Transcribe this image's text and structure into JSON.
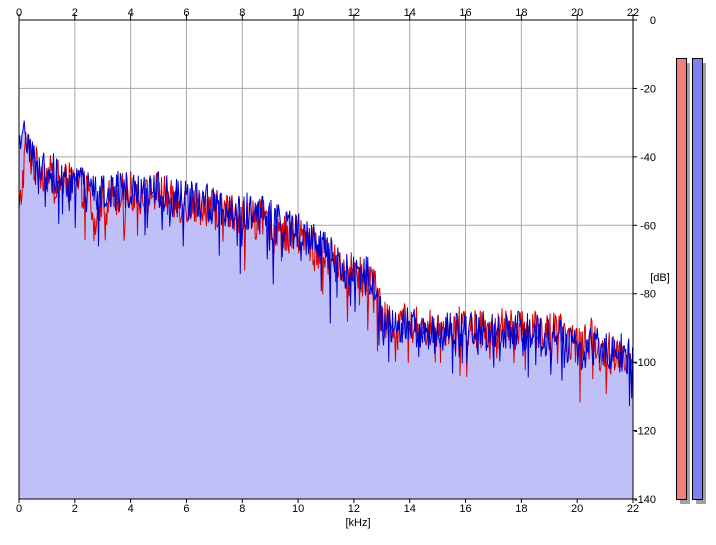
{
  "chart_data": {
    "type": "area",
    "title": "",
    "xlabel": "[kHz]",
    "ylabel": "[dB]",
    "xlim": [
      0,
      22
    ],
    "ylim": [
      -140,
      0
    ],
    "x_ticks": [
      "0",
      "2",
      "4",
      "6",
      "8",
      "10",
      "12",
      "14",
      "16",
      "18",
      "20",
      "22"
    ],
    "y_ticks": [
      "0",
      "-20",
      "-40",
      "-60",
      "-80",
      "-100",
      "-120",
      "-140"
    ],
    "grid": true,
    "fill_color": "#c0c0f8",
    "series": [
      {
        "color": "#dd0000",
        "x": [
          0,
          0.25,
          0.5,
          1,
          1.5,
          2,
          2.5,
          2.7,
          3,
          3.5,
          4,
          4.5,
          5,
          5.5,
          6,
          6.5,
          7,
          7.5,
          8,
          8.5,
          9,
          9.5,
          10,
          10.5,
          11,
          11.5,
          12,
          12.5,
          12.8,
          13,
          13.5,
          14,
          14.5,
          15,
          15.5,
          16,
          16.5,
          17,
          17.5,
          18,
          18.5,
          19,
          19.5,
          20,
          20.5,
          21,
          21.5,
          22
        ],
        "y": [
          -58,
          -36,
          -42,
          -45,
          -47,
          -48,
          -50,
          -62,
          -52,
          -51,
          -50,
          -52,
          -50,
          -53,
          -54,
          -54,
          -55,
          -56,
          -57,
          -58,
          -59,
          -62,
          -63,
          -66,
          -70,
          -72,
          -74,
          -76,
          -78,
          -88,
          -89,
          -88,
          -90,
          -90,
          -89,
          -90,
          -90,
          -90,
          -90,
          -91,
          -90,
          -91,
          -92,
          -95,
          -93,
          -96,
          -97,
          -98
        ]
      },
      {
        "color": "#0000cc",
        "x": [
          0,
          0.25,
          0.5,
          1,
          1.5,
          2,
          2.5,
          3,
          3.5,
          4,
          4.5,
          5,
          5.5,
          6,
          6.5,
          7,
          7.5,
          8,
          8.5,
          9,
          9.5,
          10,
          10.5,
          11,
          11.5,
          12,
          12.5,
          12.8,
          13,
          13.5,
          14,
          14.5,
          15,
          15.5,
          16,
          16.5,
          17,
          17.5,
          18,
          18.5,
          19,
          19.5,
          20,
          20.5,
          21,
          21.5,
          22
        ],
        "y": [
          -40,
          -32,
          -40,
          -44,
          -46,
          -48,
          -50,
          -51,
          -50,
          -49,
          -51,
          -50,
          -52,
          -53,
          -53,
          -54,
          -55,
          -56,
          -57,
          -58,
          -61,
          -61,
          -64,
          -68,
          -72,
          -74,
          -75,
          -77,
          -89,
          -90,
          -89,
          -91,
          -92,
          -91,
          -90,
          -91,
          -91,
          -90,
          -91,
          -91,
          -93,
          -93,
          -97,
          -95,
          -96,
          -97,
          -99
        ]
      }
    ]
  },
  "meters": [
    {
      "color": "#f08080"
    },
    {
      "color": "#8080f0"
    }
  ]
}
